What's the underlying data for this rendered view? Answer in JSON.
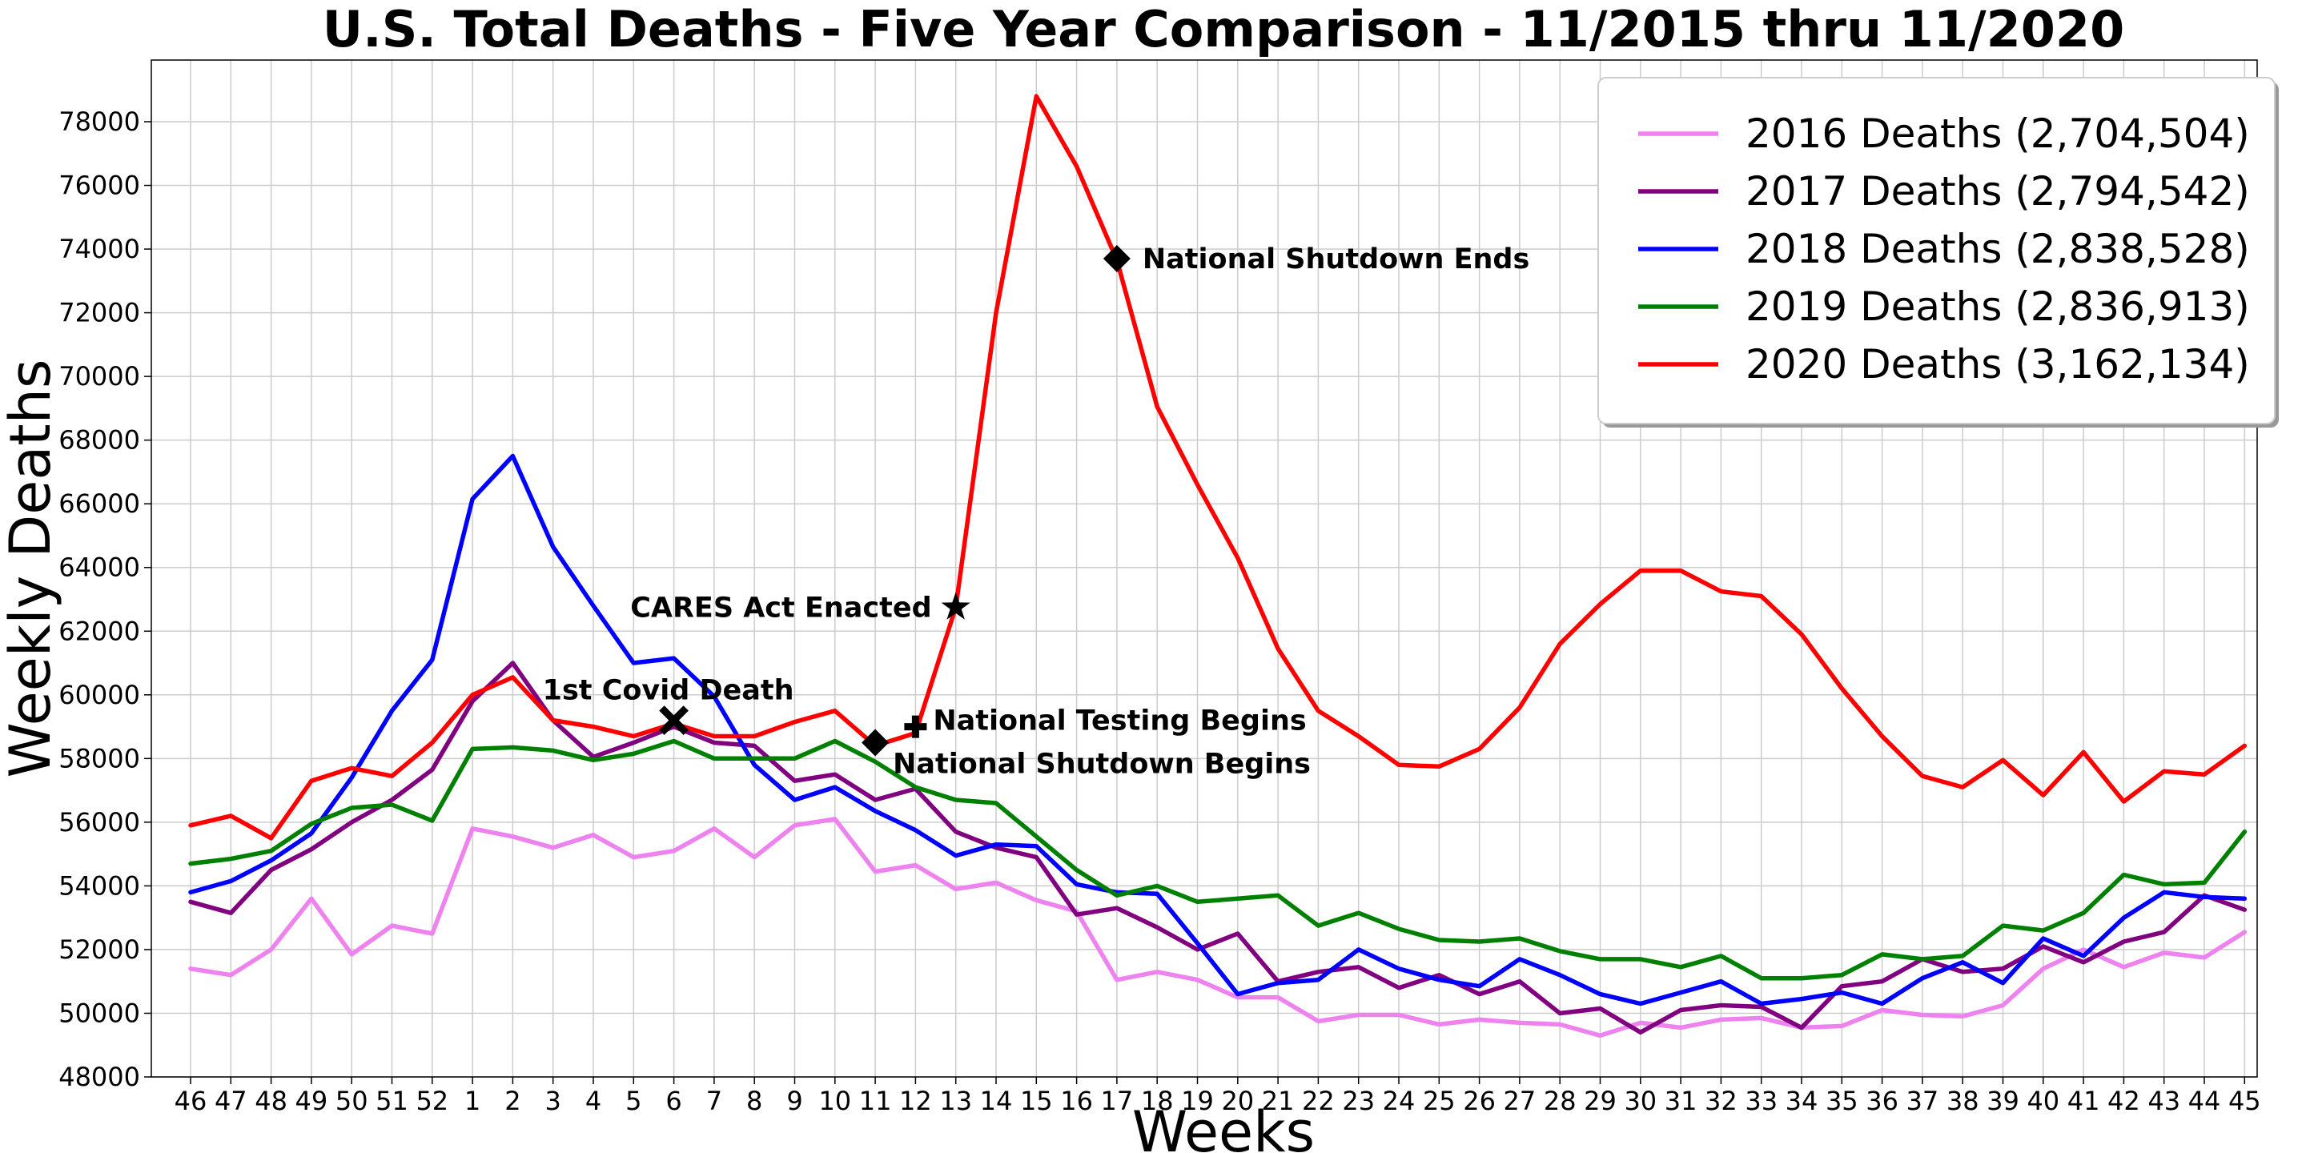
{
  "chart_data": {
    "type": "line",
    "title": "U.S. Total Deaths - Five Year Comparison - 11/2015 thru 11/2020",
    "xlabel": "Weeks",
    "ylabel": "Weekly Deaths",
    "ylim": [
      48000,
      78000
    ],
    "yticks": [
      48000,
      50000,
      52000,
      54000,
      56000,
      58000,
      60000,
      62000,
      64000,
      66000,
      68000,
      70000,
      72000,
      74000,
      76000,
      78000
    ],
    "grid": true,
    "legend_position": "top-right",
    "categories": [
      "46",
      "47",
      "48",
      "49",
      "50",
      "51",
      "52",
      "1",
      "2",
      "3",
      "4",
      "5",
      "6",
      "7",
      "8",
      "9",
      "10",
      "11",
      "12",
      "13",
      "14",
      "15",
      "16",
      "17",
      "18",
      "19",
      "20",
      "21",
      "22",
      "23",
      "24",
      "25",
      "26",
      "27",
      "28",
      "29",
      "30",
      "31",
      "32",
      "33",
      "34",
      "35",
      "36",
      "37",
      "38",
      "39",
      "40",
      "41",
      "42",
      "43",
      "44",
      "45"
    ],
    "series": [
      {
        "name": "2016 Deaths (2,704,504)",
        "color": "#ee82ee",
        "values": [
          51400,
          51200,
          52000,
          53600,
          51850,
          52750,
          52500,
          55800,
          55550,
          55200,
          55600,
          54900,
          55100,
          55800,
          54900,
          55900,
          56100,
          54450,
          54650,
          53900,
          54100,
          53550,
          53200,
          51050,
          51300,
          51050,
          50500,
          50500,
          49750,
          49950,
          49950,
          49650,
          49800,
          49700,
          49650,
          49300,
          49700,
          49550,
          49800,
          49850,
          49550,
          49600,
          50100,
          49950,
          49900,
          50250,
          51400,
          52000,
          51450,
          51900,
          51750,
          52550
        ]
      },
      {
        "name": "2017 Deaths (2,794,542)",
        "color": "#800080",
        "values": [
          53500,
          53150,
          54500,
          55150,
          56000,
          56700,
          57650,
          59800,
          61000,
          59200,
          58050,
          58500,
          59000,
          58500,
          58400,
          57300,
          57500,
          56700,
          57050,
          55700,
          55200,
          54900,
          53100,
          53300,
          52700,
          52000,
          52500,
          51000,
          51300,
          51450,
          50800,
          51200,
          50600,
          51000,
          50000,
          50150,
          49400,
          50100,
          50250,
          50200,
          49550,
          50850,
          51000,
          51700,
          51300,
          51400,
          52100,
          51600,
          52250,
          52550,
          53700,
          53250
        ]
      },
      {
        "name": "2018 Deaths (2,838,528)",
        "color": "#0000ff",
        "values": [
          53800,
          54150,
          54800,
          55650,
          57400,
          59500,
          61100,
          66150,
          67500,
          64650,
          62800,
          61000,
          61150,
          59950,
          57800,
          56700,
          57100,
          56350,
          55750,
          54950,
          55300,
          55250,
          54050,
          53800,
          53750,
          52200,
          50600,
          50950,
          51050,
          52000,
          51400,
          51050,
          50850,
          51700,
          51200,
          50600,
          50300,
          50650,
          51000,
          50300,
          50450,
          50650,
          50300,
          51100,
          51600,
          50950,
          52350,
          51800,
          53000,
          53800,
          53650,
          53600
        ]
      },
      {
        "name": "2019 Deaths (2,836,913)",
        "color": "#008000",
        "values": [
          54700,
          54850,
          55100,
          55950,
          56450,
          56550,
          56050,
          58300,
          58350,
          58250,
          57950,
          58150,
          58550,
          58000,
          58000,
          58000,
          58550,
          57900,
          57100,
          56700,
          56600,
          55550,
          54500,
          53700,
          54000,
          53500,
          53600,
          53700,
          52750,
          53150,
          52650,
          52300,
          52250,
          52350,
          51950,
          51700,
          51700,
          51450,
          51800,
          51100,
          51100,
          51200,
          51850,
          51700,
          51800,
          52750,
          52600,
          53150,
          54350,
          54050,
          54100,
          55700
        ]
      },
      {
        "name": "2020 Deaths (3,162,134)",
        "color": "#ff0000",
        "values": [
          55900,
          56200,
          55500,
          57300,
          57700,
          57450,
          58500,
          60000,
          60550,
          59200,
          59000,
          58700,
          59100,
          58700,
          58700,
          59150,
          59500,
          58400,
          58800,
          62750,
          72000,
          78800,
          76600,
          73650,
          69050,
          66600,
          64300,
          61450,
          59500,
          58700,
          57800,
          57750,
          58300,
          59600,
          61600,
          62850,
          63900,
          63900,
          63250,
          63100,
          61900,
          60200,
          58700,
          57450,
          57100,
          57950,
          56850,
          58200,
          56650,
          57600,
          57500,
          58400
        ]
      }
    ],
    "annotations": [
      {
        "text": "1st Covid Death",
        "x": "6",
        "y": 59200,
        "marker": "x"
      },
      {
        "text": "National Shutdown Begins",
        "x": "11",
        "y": 58500,
        "marker": "diamond"
      },
      {
        "text": "National Testing Begins",
        "x": "12",
        "y": 59000,
        "marker": "plus"
      },
      {
        "text": "CARES Act Enacted",
        "x": "13",
        "y": 62750,
        "marker": "star"
      },
      {
        "text": "National Shutdown Ends",
        "x": "17",
        "y": 73700,
        "marker": "diamond"
      }
    ]
  }
}
